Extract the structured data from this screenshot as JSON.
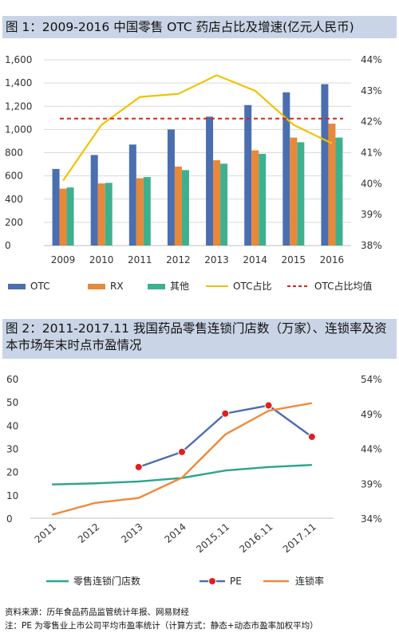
{
  "chart_data": [
    {
      "type": "bar",
      "title": "图 1：2009-2016 中国零售 OTC 药店占比及增速(亿元人民币)",
      "categories": [
        "2009",
        "2010",
        "2011",
        "2012",
        "2013",
        "2014",
        "2015",
        "2016"
      ],
      "series": [
        {
          "name": "OTC",
          "values": [
            660,
            780,
            870,
            1000,
            1110,
            1210,
            1320,
            1390
          ],
          "color": "#4a6eb0"
        },
        {
          "name": "RX",
          "values": [
            490,
            535,
            580,
            680,
            735,
            820,
            930,
            1050
          ],
          "color": "#e8883a"
        },
        {
          "name": "其他",
          "values": [
            500,
            540,
            590,
            650,
            705,
            790,
            890,
            930
          ],
          "color": "#3fb08e"
        },
        {
          "name": "OTC占比",
          "axis": "right",
          "values": [
            40.1,
            41.9,
            42.8,
            42.9,
            43.5,
            43.0,
            41.9,
            41.3
          ],
          "color": "#f2c200"
        },
        {
          "name": "OTC占比均值",
          "axis": "right",
          "values": [
            42.1,
            42.1,
            42.1,
            42.1,
            42.1,
            42.1,
            42.1,
            42.1
          ],
          "color": "#e02020",
          "style": "dashed"
        }
      ],
      "ylim": [
        0,
        1600
      ],
      "yticks": [
        "0",
        "200",
        "400",
        "600",
        "800",
        "1,000",
        "1,200",
        "1,400",
        "1,600"
      ],
      "y2lim": [
        38,
        44
      ],
      "y2ticks": [
        "38%",
        "39%",
        "40%",
        "41%",
        "42%",
        "43%",
        "44%"
      ],
      "legend_position": "bottom"
    },
    {
      "type": "line",
      "title": "图 2：2011-2017.11 我国药品零售连锁门店数（万家）、连锁率及资本市场年末时点市盈情况",
      "categories": [
        "2011",
        "2012",
        "2013",
        "2014",
        "2015.11",
        "2016.11",
        "2017.11"
      ],
      "series": [
        {
          "name": "零售连锁门店数",
          "axis": "left",
          "values": [
            14.5,
            15.0,
            15.8,
            17.3,
            20.5,
            22.0,
            22.9
          ],
          "color": "#2aa58a"
        },
        {
          "name": "PE",
          "axis": "left",
          "values": [
            null,
            null,
            22,
            28.5,
            45,
            48.5,
            35
          ],
          "color": "#4a6eb0",
          "marker_color": "#e02020"
        },
        {
          "name": "连锁率",
          "axis": "right",
          "values": [
            34.5,
            36.2,
            36.9,
            39.8,
            46.0,
            49.4,
            50.5
          ],
          "color": "#f0883a"
        }
      ],
      "ylim": [
        0,
        60
      ],
      "yticks": [
        "0",
        "10",
        "20",
        "30",
        "40",
        "50",
        "60"
      ],
      "y2lim": [
        34,
        54
      ],
      "y2ticks": [
        "34%",
        "39%",
        "44%",
        "49%",
        "54%"
      ],
      "legend_position": "bottom"
    }
  ],
  "notes": {
    "source": "资料来源：历年食品药品监管统计年报、网易财经",
    "note": "注：PE 为零售业上市公司平均市盈率统计（计算方式：静态+动态市盈率加权平均）"
  }
}
